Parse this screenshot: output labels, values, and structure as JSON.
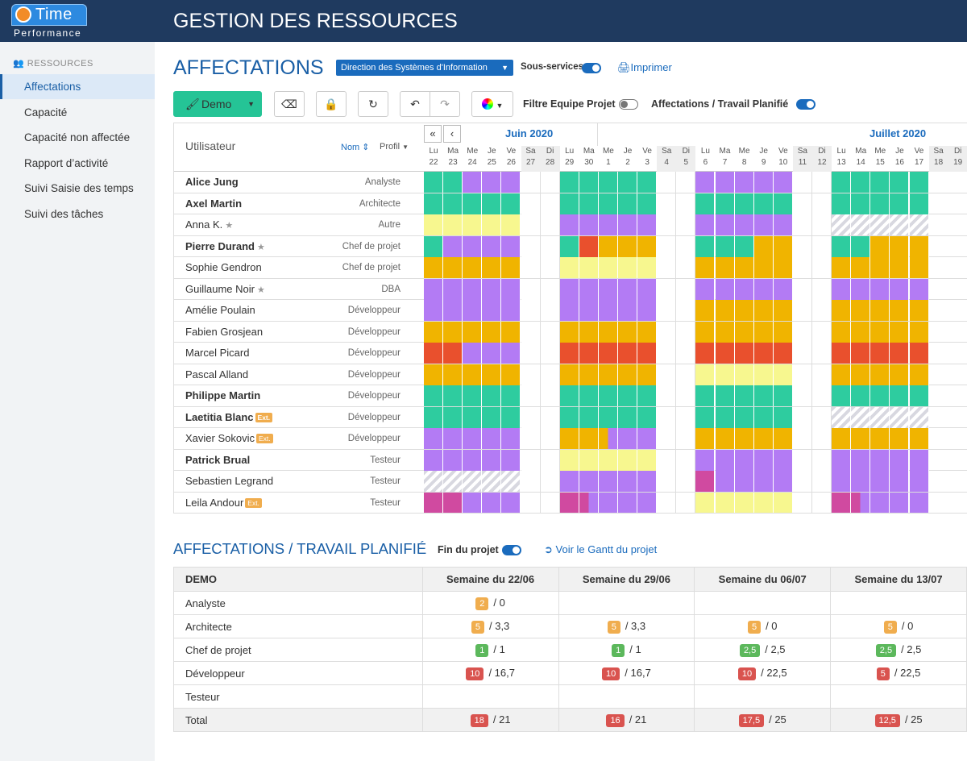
{
  "app": {
    "logo_brand": "Time",
    "logo_sub": "Performance",
    "title": "GESTION DES RESSOURCES"
  },
  "sidebar": {
    "header": "RESSOURCES",
    "items": [
      {
        "label": "Affectations",
        "active": true
      },
      {
        "label": "Capacité"
      },
      {
        "label": "Capacité non affectée"
      },
      {
        "label": "Rapport d’activité"
      },
      {
        "label": "Suivi Saisie des temps"
      },
      {
        "label": "Suivi des tâches"
      }
    ]
  },
  "toolbar": {
    "heading": "AFFECTATIONS",
    "service": "Direction des Systèmes d'Information",
    "sous_services": "Sous-services",
    "sous_services_on": true,
    "print": "Imprimer",
    "demo": "Demo",
    "filter_label": "Filtre Equipe Projet",
    "filter_on": false,
    "aff_label": "Affectations / Travail Planifié",
    "aff_on": true
  },
  "grid": {
    "user_header": "Utilisateur",
    "sort_nom": "Nom",
    "sort_profil": "Profil",
    "months": [
      "Juin 2020",
      "Juillet 2020"
    ],
    "days": [
      [
        "Lu",
        "22"
      ],
      [
        "Ma",
        "23"
      ],
      [
        "Me",
        "24"
      ],
      [
        "Je",
        "25"
      ],
      [
        "Ve",
        "26"
      ],
      [
        "Sa",
        "27"
      ],
      [
        "Di",
        "28"
      ],
      [
        "Lu",
        "29"
      ],
      [
        "Ma",
        "30"
      ],
      [
        "Me",
        "1"
      ],
      [
        "Je",
        "2"
      ],
      [
        "Ve",
        "3"
      ],
      [
        "Sa",
        "4"
      ],
      [
        "Di",
        "5"
      ],
      [
        "Lu",
        "6"
      ],
      [
        "Ma",
        "7"
      ],
      [
        "Me",
        "8"
      ],
      [
        "Je",
        "9"
      ],
      [
        "Ve",
        "10"
      ],
      [
        "Sa",
        "11"
      ],
      [
        "Di",
        "12"
      ],
      [
        "Lu",
        "13"
      ],
      [
        "Ma",
        "14"
      ],
      [
        "Me",
        "15"
      ],
      [
        "Je",
        "16"
      ],
      [
        "Ve",
        "17"
      ],
      [
        "Sa",
        "18"
      ],
      [
        "Di",
        "19"
      ]
    ],
    "colors": {
      "g": "#2ecc9f",
      "p": "#b37bf4",
      "y": "#f7f78f",
      "o": "#f0b400",
      "r": "#e9502d",
      "m": "#d04aa0",
      "h": "hatch"
    },
    "users": [
      {
        "name": "Alice Jung",
        "bold": true,
        "role": "Analyste",
        "cells": "ggppp..ggggg..ppppp..ggggg"
      },
      {
        "name": "Axel Martin",
        "bold": true,
        "role": "Architecte",
        "cells": "ggggg..ggggg..ggggg..ggggg"
      },
      {
        "name": "Anna K.",
        "star": true,
        "role": "Autre",
        "cells": "yyyyy..ppppp..ppppp..hhhhh"
      },
      {
        "name": "Pierre Durand",
        "bold": true,
        "star": true,
        "role": "Chef de projet",
        "cells": "gpppp..grooo..gggoo..ggooo"
      },
      {
        "name": "Sophie Gendron",
        "role": "Chef de projet",
        "cells": "ooooo..yyyyy..ooooo..ooooo"
      },
      {
        "name": "Guillaume Noir",
        "star": true,
        "role": "DBA",
        "cells": "ppppp..ppppp..ppppp..ppppp"
      },
      {
        "name": "Amélie Poulain",
        "role": "Développeur",
        "cells": "ppppp..ppppp..ooooo..ooooo"
      },
      {
        "name": "Fabien Grosjean",
        "role": "Développeur",
        "cells": "ooooo..ooooo..ooooo..ooooo"
      },
      {
        "name": "Marcel Picard",
        "role": "Développeur",
        "cells": "rrppp..rrrrr..rrrrr..rrrrr"
      },
      {
        "name": "Pascal Alland",
        "role": "Développeur",
        "cells": "ooooo..ooooo..yyyyy..ooooo"
      },
      {
        "name": "Philippe Martin",
        "bold": true,
        "role": "Développeur",
        "cells": "ggggg..ggggg..ggggg..ggggg"
      },
      {
        "name": "Laetitia Blanc",
        "bold": true,
        "ext": "Ext.",
        "role": "Développeur",
        "cells": "ggggg..ggggg..ggggg..hhhhh"
      },
      {
        "name": "Xavier Sokovic",
        "ext": "Ext.",
        "role": "Développeur",
        "cells": "ppppp..oolpp..ooooo..ooooo"
      },
      {
        "name": "Patrick Brual",
        "bold": true,
        "role": "Testeur",
        "cells": "ppppp..yyyyy..ppppp..ppppp"
      },
      {
        "name": "Sebastien Legrand",
        "role": "Testeur",
        "cells": "hhhhh..ppppp..mpppp..ppppp"
      },
      {
        "name": "Leila Andour",
        "ext": "Ext.",
        "role": "Testeur",
        "cells": "mmppp..mqppp..yyyyy..mqppp"
      }
    ]
  },
  "planning": {
    "title": "AFFECTATIONS / TRAVAIL PLANIFIÉ",
    "fin_label": "Fin du projet",
    "fin_on": true,
    "gantt": "Voir le Gantt du projet",
    "headers": [
      "DEMO",
      "Semaine du 22/06",
      "Semaine du 29/06",
      "Semaine du 06/07",
      "Semaine du 13/07"
    ],
    "rows": [
      {
        "label": "Analyste",
        "cells": [
          [
            "2",
            "#f0ad4e",
            "0"
          ],
          null,
          null,
          null
        ]
      },
      {
        "label": "Architecte",
        "cells": [
          [
            "5",
            "#f0ad4e",
            "3,3"
          ],
          [
            "5",
            "#f0ad4e",
            "3,3"
          ],
          [
            "5",
            "#f0ad4e",
            "0"
          ],
          [
            "5",
            "#f0ad4e",
            "0"
          ]
        ]
      },
      {
        "label": "Chef de projet",
        "cells": [
          [
            "1",
            "#5cb85c",
            "1"
          ],
          [
            "1",
            "#5cb85c",
            "1"
          ],
          [
            "2,5",
            "#5cb85c",
            "2,5"
          ],
          [
            "2,5",
            "#5cb85c",
            "2,5"
          ]
        ]
      },
      {
        "label": "Développeur",
        "cells": [
          [
            "10",
            "#d9534f",
            "16,7"
          ],
          [
            "10",
            "#d9534f",
            "16,7"
          ],
          [
            "10",
            "#d9534f",
            "22,5"
          ],
          [
            "5",
            "#d9534f",
            "22,5"
          ]
        ]
      },
      {
        "label": "Testeur",
        "cells": [
          null,
          null,
          null,
          null
        ]
      },
      {
        "label": "Total",
        "total": true,
        "cells": [
          [
            "18",
            "#d9534f",
            "21"
          ],
          [
            "16",
            "#d9534f",
            "21"
          ],
          [
            "17,5",
            "#d9534f",
            "25"
          ],
          [
            "12,5",
            "#d9534f",
            "25"
          ]
        ]
      }
    ]
  }
}
